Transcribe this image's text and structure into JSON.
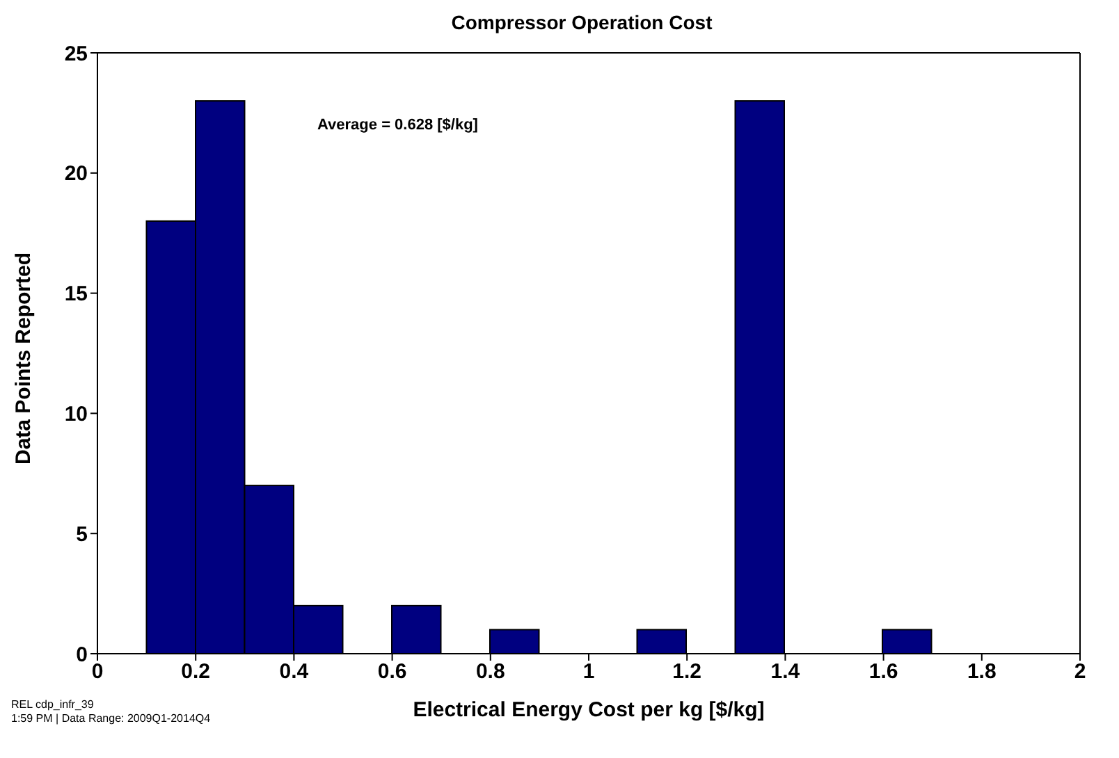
{
  "chart_data": {
    "type": "histogram",
    "title": "Compressor Operation Cost",
    "xlabel": "Electrical Energy Cost per kg [$/kg]",
    "ylabel": "Data Points Reported",
    "bins": [
      0.1,
      0.2,
      0.3,
      0.4,
      0.5,
      0.6,
      0.7,
      0.8,
      0.9,
      1.0,
      1.1,
      1.2,
      1.3,
      1.4,
      1.5,
      1.6,
      1.7
    ],
    "values": [
      18,
      23,
      7,
      2,
      0,
      2,
      0,
      1,
      0,
      0,
      1,
      0,
      23,
      0,
      0,
      1
    ],
    "color": "#000080",
    "xlim": [
      0,
      2
    ],
    "xticks": [
      0,
      0.2,
      0.4,
      0.6,
      0.8,
      1,
      1.2,
      1.4,
      1.6,
      1.8,
      2
    ],
    "ylim": [
      0,
      25
    ],
    "yticks": [
      0,
      5,
      10,
      15,
      20,
      25
    ],
    "annotations": [
      "Average = 0.628 [$/kg]",
      "REL cdp_infr_39",
      "1:59 PM | Data Range: 2009Q1-2014Q4"
    ]
  }
}
